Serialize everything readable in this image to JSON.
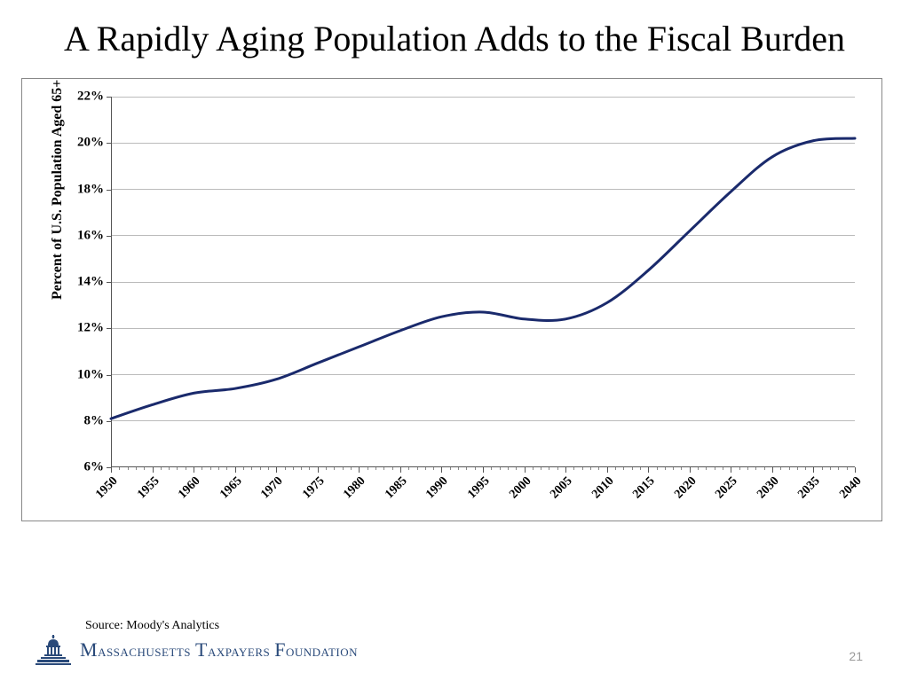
{
  "title": "A Rapidly Aging Population Adds to the Fiscal Burden",
  "chart": {
    "type": "line",
    "yaxis_label": "Percent of U.S. Population  Aged 65+",
    "ylim": [
      6,
      22
    ],
    "ytick_step": 2,
    "yticks": [
      6,
      8,
      10,
      12,
      14,
      16,
      18,
      20,
      22
    ],
    "xlim": [
      1950,
      2040
    ],
    "xtick_step": 5,
    "xticks_major": [
      1950,
      1955,
      1960,
      1965,
      1970,
      1975,
      1980,
      1985,
      1990,
      1995,
      2000,
      2005,
      2010,
      2015,
      2020,
      2025,
      2030,
      2035,
      2040
    ],
    "minor_tick_interval": 1,
    "line_color": "#1a2a6c",
    "line_width": 3,
    "background_color": "#ffffff",
    "grid_color": "#bbbbbb",
    "axis_color": "#555555",
    "label_fontsize": 15,
    "axis_title_fontsize": 16,
    "series": {
      "years": [
        1950,
        1955,
        1960,
        1965,
        1970,
        1975,
        1980,
        1985,
        1990,
        1995,
        2000,
        2005,
        2010,
        2015,
        2020,
        2025,
        2030,
        2035,
        2040
      ],
      "values": [
        8.1,
        8.7,
        9.2,
        9.4,
        9.8,
        10.5,
        11.2,
        11.9,
        12.5,
        12.7,
        12.4,
        12.4,
        13.1,
        14.5,
        16.2,
        17.9,
        19.4,
        20.1,
        20.2
      ]
    }
  },
  "source_label": "Source: Moody's Analytics",
  "org_name_parts": [
    "M",
    "assachusetts ",
    "T",
    "axpayers ",
    "F",
    "oundation"
  ],
  "page_number": "21",
  "brand_color": "#2a4a7a"
}
